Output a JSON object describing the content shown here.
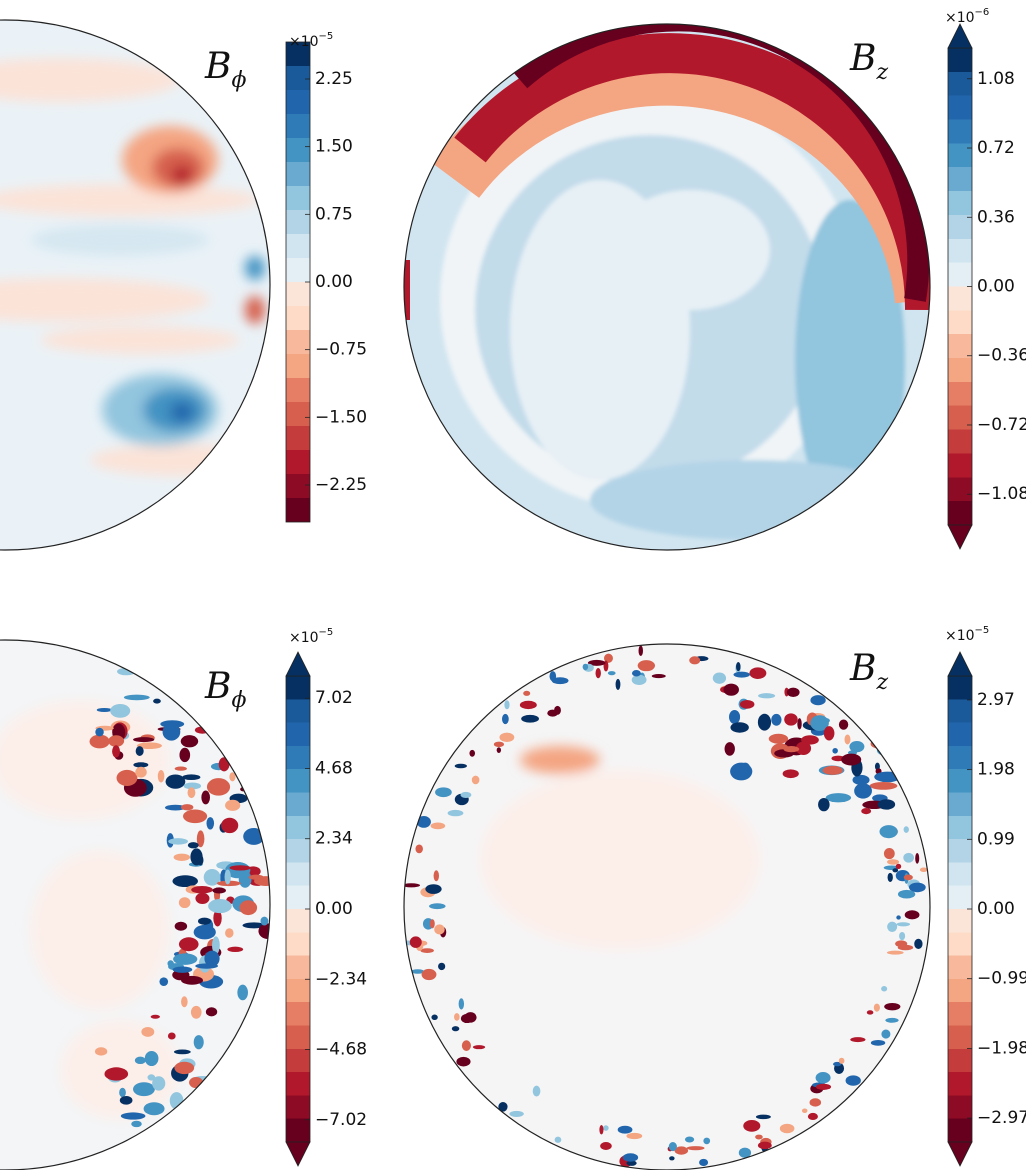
{
  "chart_data": [
    {
      "type": "contour",
      "title": "B",
      "title_subscript": "ϕ",
      "scale_base": "×10",
      "scale_exponent": "−5",
      "colorbar_extend": false,
      "ylim": [
        -2.66,
        2.66
      ],
      "yticks": [
        2.25,
        {
          "value": 1.5,
          "label": "1.50"
        },
        0.75,
        {
          "value": 0,
          "label": "0.00"
        },
        {
          "value": -0.75,
          "label": "−0.75"
        },
        {
          "value": -1.5,
          "label": "−1.50"
        },
        {
          "value": -2.25,
          "label": "−2.25"
        }
      ]
    },
    {
      "type": "contour",
      "title": "B",
      "title_subscript": "z",
      "scale_base": "×10",
      "scale_exponent": "−6",
      "colorbar_extend": true,
      "ylim": [
        -1.24,
        1.24
      ],
      "yticks": [
        1.08,
        0.72,
        0.36,
        {
          "value": 0,
          "label": "0.00"
        },
        {
          "value": -0.36,
          "label": "−0.36"
        },
        {
          "value": -0.72,
          "label": "−0.72"
        },
        {
          "value": -1.08,
          "label": "−1.08"
        }
      ]
    },
    {
      "type": "contour",
      "title": "B",
      "title_subscript": "ϕ",
      "scale_base": "×10",
      "scale_exponent": "−5",
      "colorbar_extend": true,
      "ylim": [
        -7.76,
        7.76
      ],
      "yticks": [
        7.02,
        4.68,
        2.34,
        {
          "value": 0,
          "label": "0.00"
        },
        {
          "value": -2.34,
          "label": "−2.34"
        },
        {
          "value": -4.68,
          "label": "−4.68"
        },
        {
          "value": -7.02,
          "label": "−7.02"
        }
      ]
    },
    {
      "type": "contour",
      "title": "B",
      "title_subscript": "z",
      "scale_base": "×10",
      "scale_exponent": "−5",
      "colorbar_extend": true,
      "ylim": [
        -3.31,
        3.31
      ],
      "yticks": [
        2.97,
        1.98,
        0.99,
        {
          "value": 0,
          "label": "0.00"
        },
        {
          "value": -0.99,
          "label": "−0.99"
        },
        {
          "value": -1.98,
          "label": "−1.98"
        },
        {
          "value": -2.97,
          "label": "−2.97"
        }
      ]
    }
  ]
}
